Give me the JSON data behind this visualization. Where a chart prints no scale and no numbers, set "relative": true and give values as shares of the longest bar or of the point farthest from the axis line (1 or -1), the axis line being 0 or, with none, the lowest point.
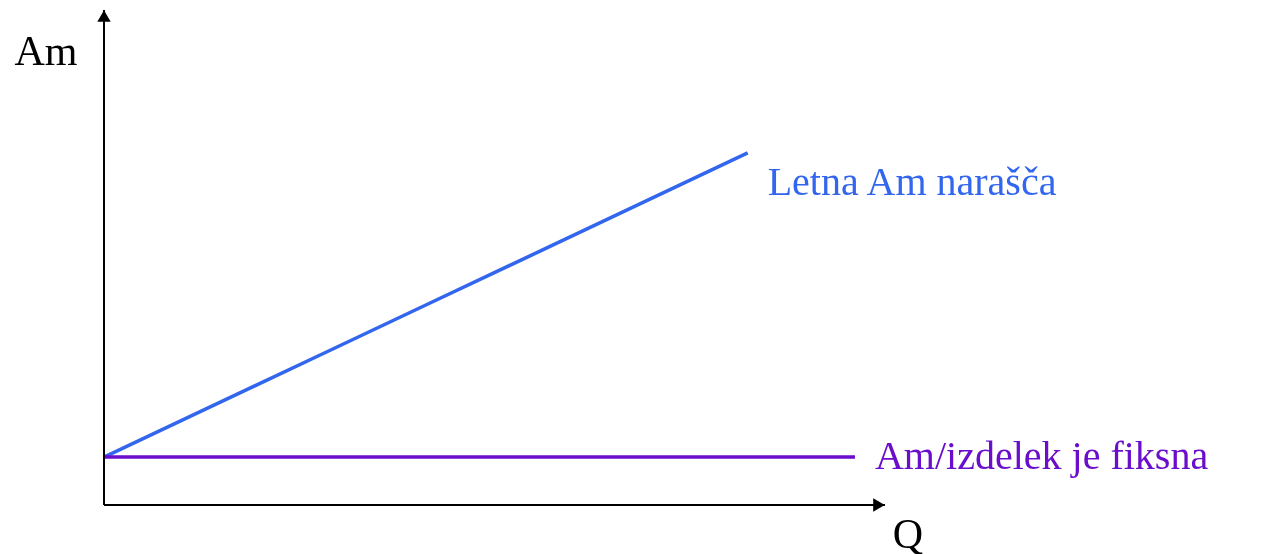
{
  "chart_data": {
    "type": "line",
    "relative": true,
    "xlabel": "Q",
    "ylabel": "Am",
    "categories": [
      null,
      null,
      null,
      null,
      null,
      null,
      null,
      null
    ],
    "series": [
      {
        "name": "Letna Am narašča",
        "color": "#3366ee",
        "values": [
          0.136,
          0.28,
          0.424,
          0.568,
          0.712,
          0.856,
          1.0,
          null
        ]
      },
      {
        "name": "Am/izdelek je fiksna",
        "color": "#6a0dcc",
        "values": [
          0.136,
          0.136,
          0.136,
          0.136,
          0.136,
          0.136,
          0.136,
          0.136
        ]
      }
    ]
  }
}
